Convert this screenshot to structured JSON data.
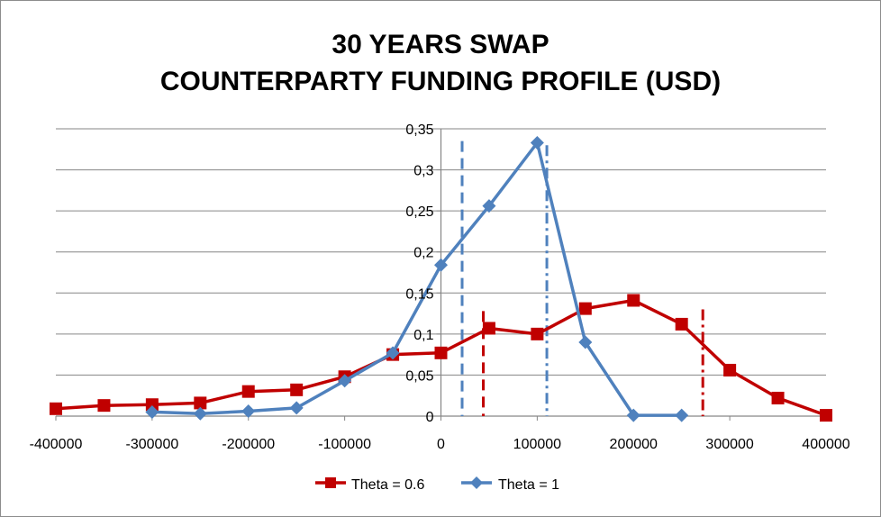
{
  "chart_data": {
    "type": "line",
    "title_lines": [
      "30 YEARS SWAP",
      "COUNTERPARTY FUNDING PROFILE (USD)"
    ],
    "xlim": [
      -400000,
      400000
    ],
    "ylim": [
      0,
      0.35
    ],
    "x_ticks": [
      -400000,
      -300000,
      -200000,
      -100000,
      0,
      100000,
      200000,
      300000,
      400000
    ],
    "x_tick_labels": [
      "-400000",
      "-300000",
      "-200000",
      "-100000",
      "0",
      "100000",
      "200000",
      "300000",
      "400000"
    ],
    "y_ticks": [
      0,
      0.05,
      0.1,
      0.15,
      0.2,
      0.25,
      0.3,
      0.35
    ],
    "y_tick_labels": [
      "0",
      "0,05",
      "0,1",
      "0,15",
      "0,2",
      "0,25",
      "0,3",
      "0,35"
    ],
    "grid": true,
    "legend_position": "bottom",
    "series": [
      {
        "name": "Theta = 0.6",
        "color": "#c00000",
        "marker": "square",
        "x": [
          -400000,
          -350000,
          -300000,
          -250000,
          -200000,
          -150000,
          -100000,
          -50000,
          0,
          50000,
          100000,
          150000,
          200000,
          250000,
          300000,
          350000,
          400000
        ],
        "y": [
          0.009,
          0.013,
          0.014,
          0.016,
          0.03,
          0.032,
          0.048,
          0.075,
          0.077,
          0.107,
          0.1,
          0.131,
          0.141,
          0.112,
          0.056,
          0.022,
          0.001
        ]
      },
      {
        "name": "Theta = 1",
        "color": "#4f81bd",
        "marker": "diamond",
        "x": [
          -300000,
          -250000,
          -200000,
          -150000,
          -100000,
          -50000,
          0,
          50000,
          100000,
          150000,
          200000,
          250000
        ],
        "y": [
          0.005,
          0.003,
          0.006,
          0.01,
          0.043,
          0.077,
          0.184,
          0.256,
          0.333,
          0.09,
          0.001,
          0.001
        ]
      }
    ],
    "vertical_markers": [
      {
        "x": 22000,
        "color": "#4f81bd",
        "style": "dashed",
        "y_top": 0.335
      },
      {
        "x": 110000,
        "color": "#4f81bd",
        "style": "dash-dot",
        "y_top": 0.33
      },
      {
        "x": 44000,
        "color": "#c00000",
        "style": "dashed",
        "y_top": 0.128
      },
      {
        "x": 272000,
        "color": "#c00000",
        "style": "dash-dot",
        "y_top": 0.13
      }
    ]
  }
}
